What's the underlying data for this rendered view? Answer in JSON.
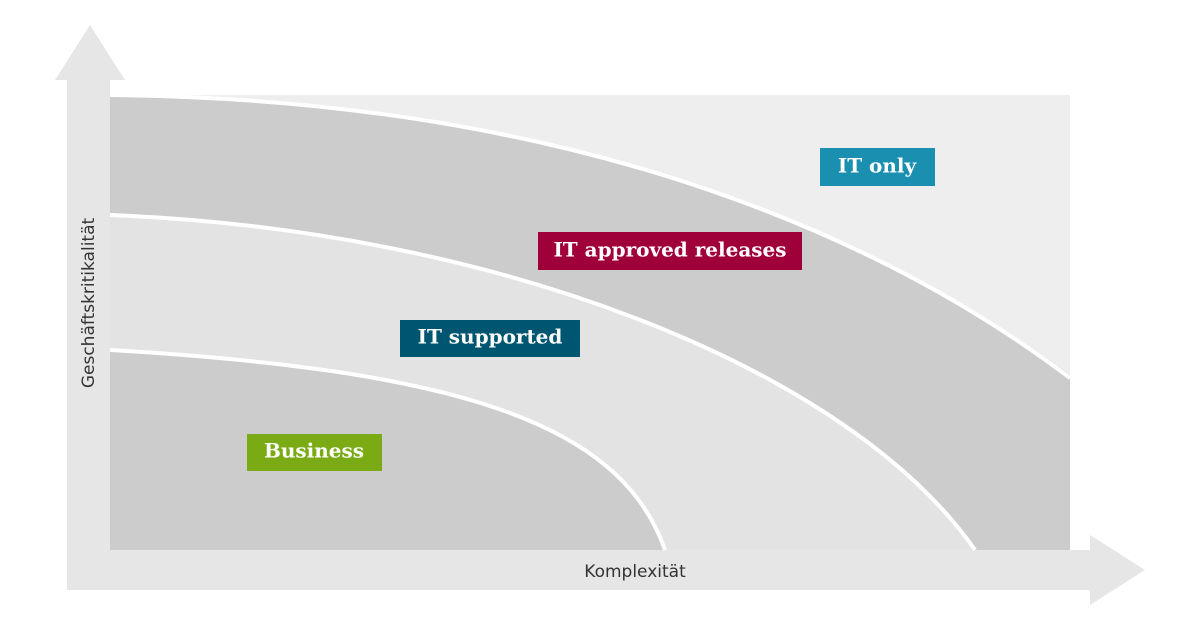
{
  "diagram": {
    "x_axis_label": "Komplexität",
    "y_axis_label": "Geschäftskritikalität",
    "zones": [
      {
        "label": "IT only"
      },
      {
        "label": "IT approved releases"
      },
      {
        "label": "IT supported"
      },
      {
        "label": "Business"
      }
    ]
  }
}
